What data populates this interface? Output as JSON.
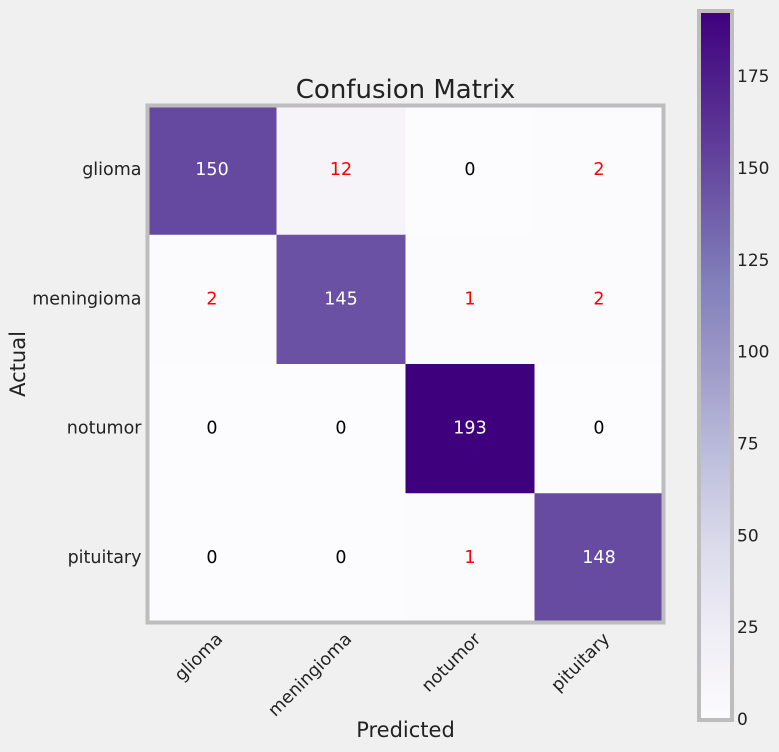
{
  "chart_data": {
    "type": "heatmap",
    "title": "Confusion Matrix",
    "xlabel": "Predicted",
    "ylabel": "Actual",
    "x_categories": [
      "glioma",
      "meningioma",
      "notumor",
      "pituitary"
    ],
    "y_categories": [
      "glioma",
      "meningioma",
      "notumor",
      "pituitary"
    ],
    "values": [
      [
        150,
        12,
        0,
        2
      ],
      [
        2,
        145,
        1,
        2
      ],
      [
        0,
        0,
        193,
        0
      ],
      [
        0,
        0,
        1,
        148
      ]
    ],
    "colormap": "Purples",
    "vmin": 0,
    "vmax": 193,
    "colorbar_ticks": [
      0,
      25,
      50,
      75,
      100,
      125,
      150,
      175
    ],
    "annotation_colors": {
      "diagonal": "#ffffff",
      "off_diagonal_nonzero": "#ff0000",
      "zero": "#000000"
    },
    "xtick_rotation_deg": 45,
    "grid": false
  }
}
